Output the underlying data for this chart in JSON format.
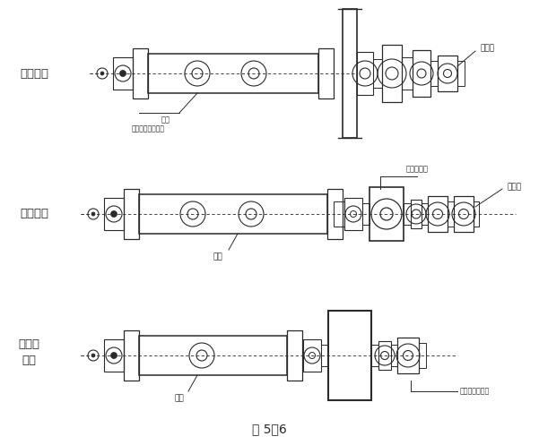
{
  "title": "图 5－6",
  "bg_color": "#ffffff",
  "line_color": "#2a2a2a",
  "labels": {
    "d1_left": "侧面驱动",
    "d1_moter": "磨机",
    "d1_gear": "大齿轮齿圈小齿轮",
    "d1_motor": "电动机",
    "d2_left": "中心驱动",
    "d2_moter": "磨机",
    "d2_reducer": "齿轮减速口",
    "d2_motor": "电动机",
    "d3_left1": "无齿轮",
    "d3_left2": "驱动",
    "d3_moter": "磨机",
    "d3_motor": "超低速同步电机"
  },
  "figsize": [
    6.01,
    4.97
  ],
  "dpi": 100
}
